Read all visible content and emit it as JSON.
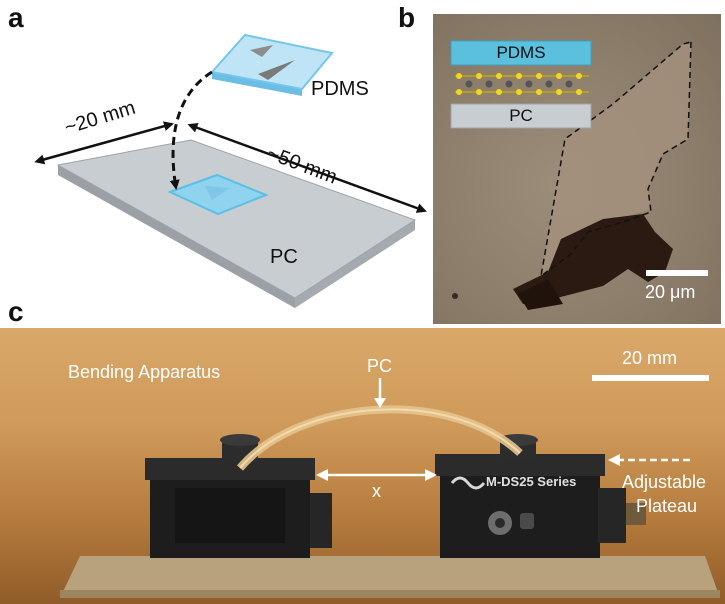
{
  "panels": {
    "a": {
      "letter": "a",
      "pdms_label": "PDMS",
      "width_label": "~20 mm",
      "length_label": "~50 mm",
      "pc_label": "PC"
    },
    "b": {
      "letter": "b",
      "inset_top_label": "PDMS",
      "inset_bottom_label": "PC",
      "scalebar_label": "20 μm"
    },
    "c": {
      "letter": "c",
      "title": "Bending Apparatus",
      "pc_label": "PC",
      "scalebar_label": "20 mm",
      "x_label": "x",
      "stage_brand": "M-DS25 Series",
      "plateau_label_1": "Adjustable",
      "plateau_label_2": "Plateau"
    }
  },
  "colors": {
    "pdms_blue": "#5bc0de",
    "pc_gray": "#c8cdd2",
    "flake_dark": "#2a1a12"
  }
}
